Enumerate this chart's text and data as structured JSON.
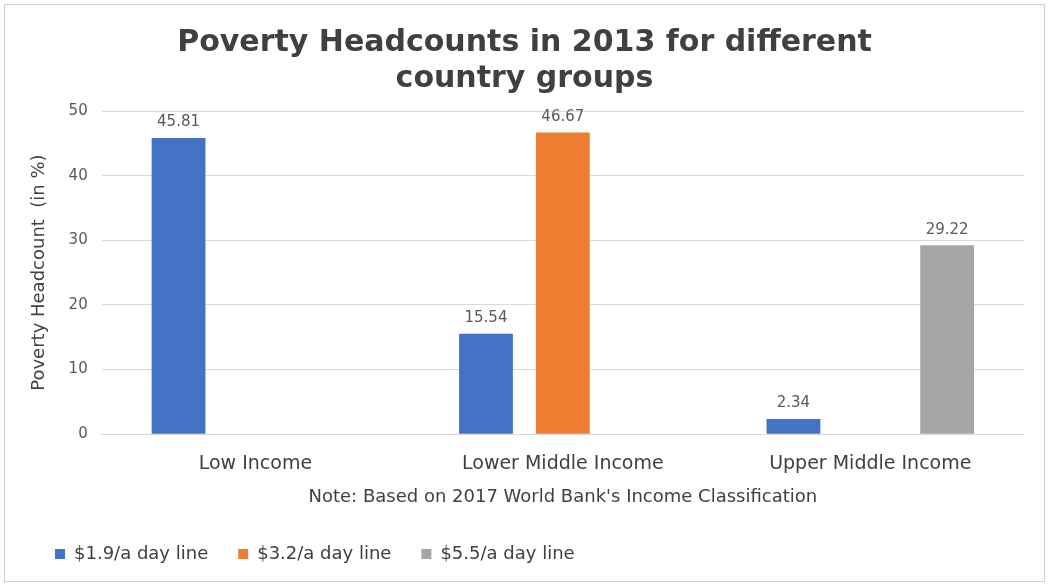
{
  "chart_data": {
    "type": "bar",
    "title": "Poverty Headcounts in 2013 for different country groups",
    "ylabel": "Poverty Headcount  (in %)",
    "categories": [
      "Low Income",
      "Lower Middle Income",
      "Upper Middle Income"
    ],
    "series": [
      {
        "name": "$1.9/a day line",
        "color": "#4472c4",
        "values": [
          45.81,
          15.54,
          2.34
        ]
      },
      {
        "name": "$3.2/a day line",
        "color": "#ed7d31",
        "values": [
          null,
          46.67,
          null
        ]
      },
      {
        "name": "$5.5/a day line",
        "color": "#a5a5a5",
        "values": [
          null,
          null,
          29.22
        ]
      }
    ],
    "ylim": [
      0,
      50
    ],
    "yticks": [
      0,
      10,
      20,
      30,
      40,
      50
    ],
    "grid": "y",
    "legend": "bottom left",
    "data_labels": true,
    "annotations": [
      "Note: Based on 2017 World Bank's Income Classification"
    ]
  }
}
